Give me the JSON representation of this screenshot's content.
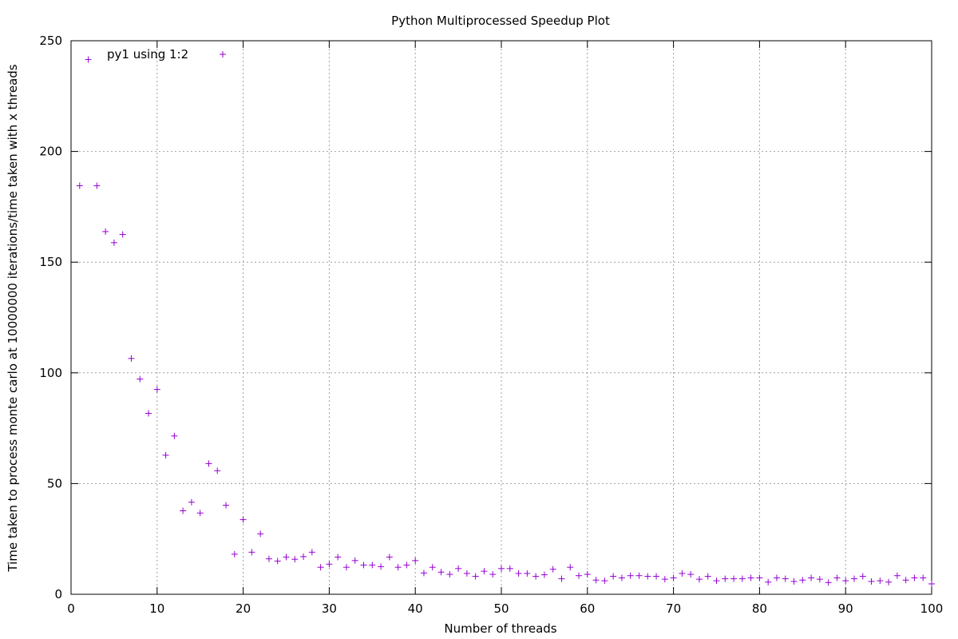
{
  "chart_data": {
    "type": "scatter",
    "title": "Python Multiprocessed Speedup Plot",
    "xlabel": "Number of threads",
    "ylabel": "Time taken to process monte carlo at 10000000 iterations/time taken with x threads",
    "xlim": [
      0,
      100
    ],
    "ylim": [
      0,
      250
    ],
    "xticks": [
      0,
      10,
      20,
      30,
      40,
      50,
      60,
      70,
      80,
      90,
      100
    ],
    "yticks": [
      0,
      50,
      100,
      150,
      200,
      250
    ],
    "grid": true,
    "legend_position": "top-left",
    "marker": "plus",
    "color": "#9400d3",
    "series": [
      {
        "name": "py1 using 1:2",
        "x": [
          1,
          2,
          3,
          4,
          5,
          6,
          7,
          8,
          9,
          10,
          11,
          12,
          13,
          14,
          15,
          16,
          17,
          18,
          19,
          20,
          21,
          22,
          23,
          24,
          25,
          26,
          27,
          28,
          29,
          30,
          31,
          32,
          33,
          34,
          35,
          36,
          37,
          38,
          39,
          40,
          41,
          42,
          43,
          44,
          45,
          46,
          47,
          48,
          49,
          50,
          51,
          52,
          53,
          54,
          55,
          56,
          57,
          58,
          59,
          60,
          61,
          62,
          63,
          64,
          65,
          66,
          67,
          68,
          69,
          70,
          71,
          72,
          73,
          74,
          75,
          76,
          77,
          78,
          79,
          80,
          81,
          82,
          83,
          84,
          85,
          86,
          87,
          88,
          89,
          90,
          91,
          92,
          93,
          94,
          95,
          96,
          97,
          98,
          99,
          100
        ],
        "y": [
          184.5,
          241.5,
          184.5,
          163.8,
          158.8,
          162.5,
          106.5,
          97.2,
          81.7,
          92.5,
          62.8,
          71.5,
          37.7,
          41.6,
          36.7,
          59.0,
          55.8,
          40.2,
          18.1,
          33.7,
          19.0,
          27.3,
          16.0,
          15.0,
          16.8,
          15.8,
          17.0,
          19.0,
          12.2,
          13.6,
          16.8,
          12.2,
          15.2,
          13.2,
          13.2,
          12.5,
          16.8,
          12.2,
          13.2,
          15.2,
          9.6,
          12.2,
          10.0,
          9.0,
          11.6,
          9.4,
          8.1,
          10.4,
          9.0,
          11.6,
          11.6,
          9.4,
          9.4,
          8.1,
          8.8,
          11.3,
          7.0,
          12.2,
          8.4,
          9.0,
          6.4,
          6.1,
          8.1,
          7.4,
          8.4,
          8.4,
          8.1,
          8.1,
          6.8,
          7.4,
          9.4,
          9.0,
          6.8,
          8.1,
          6.1,
          7.0,
          7.0,
          7.0,
          7.4,
          7.4,
          5.5,
          7.4,
          7.0,
          5.8,
          6.4,
          7.4,
          6.8,
          5.3,
          7.4,
          6.1,
          7.0,
          8.1,
          5.8,
          6.1,
          5.5,
          8.4,
          6.4,
          7.4,
          7.4,
          4.7
        ]
      }
    ]
  }
}
